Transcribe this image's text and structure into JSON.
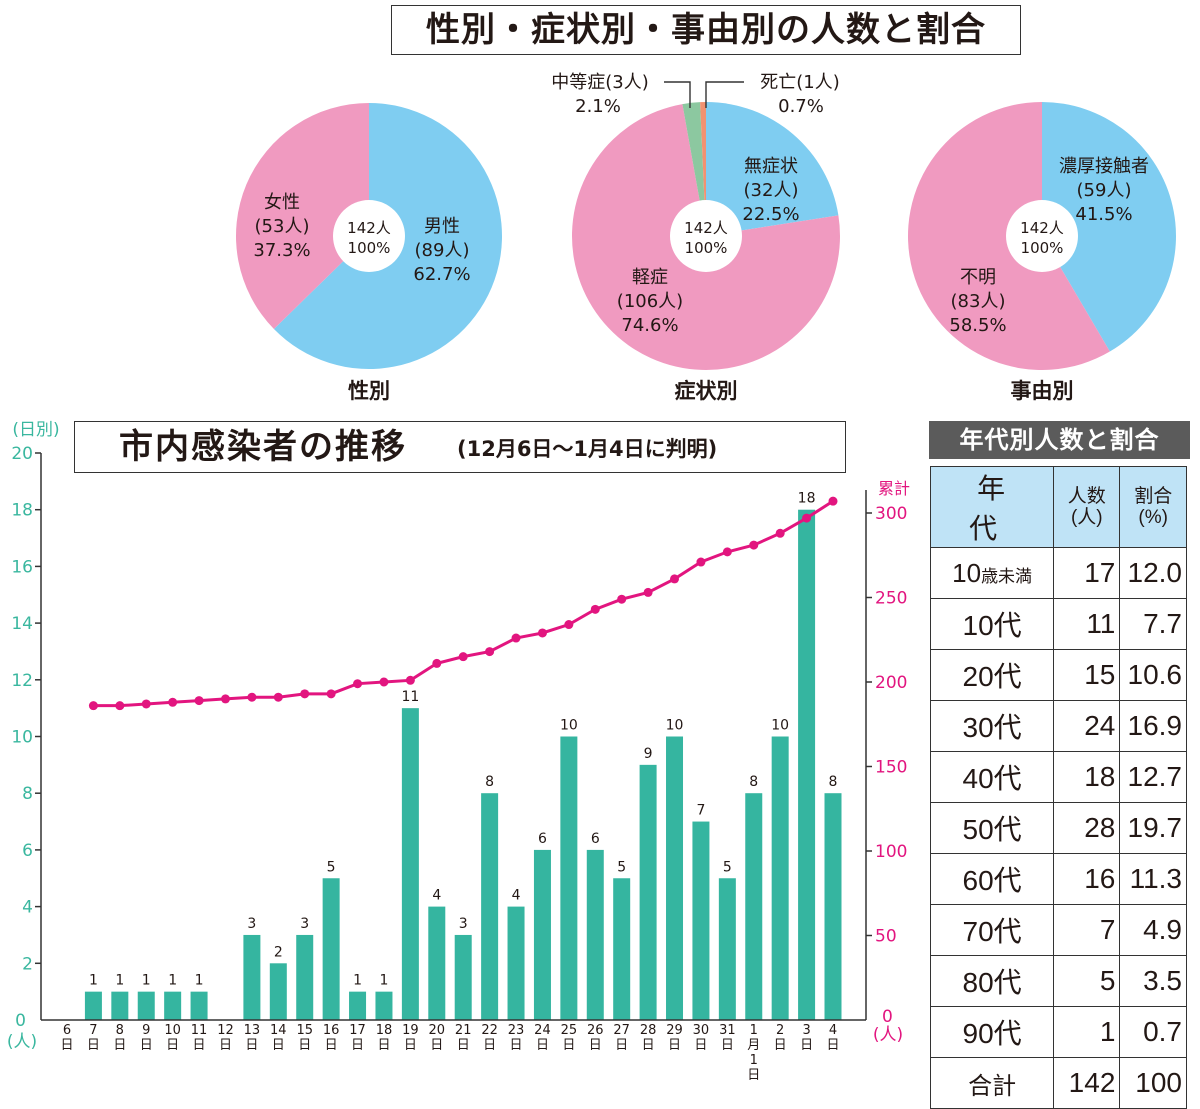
{
  "header": {
    "title": "性別・症状別・事由別の人数と割合"
  },
  "colors": {
    "blue": "#7fcdf1",
    "pink": "#f09ac0",
    "green": "#8cc8a0",
    "orange": "#f29271",
    "bar": "#35b5a0",
    "line": "#e2157f",
    "left_axis_text": "#3ab79f",
    "right_axis_text": "#e2157f",
    "table_header_bg": "#bfe3f6",
    "age_title_bg": "#5b5b5b"
  },
  "pies": [
    {
      "caption": "性別",
      "center": [
        "142人",
        "100%"
      ],
      "slices": [
        {
          "name": "男性",
          "count": "(89人)",
          "pct": "62.7%",
          "value": 89,
          "color": "#7fcdf1"
        },
        {
          "name": "女性",
          "count": "(53人)",
          "pct": "37.3%",
          "value": 53,
          "color": "#f09ac0"
        }
      ]
    },
    {
      "caption": "症状別",
      "center": [
        "142人",
        "100%"
      ],
      "slices": [
        {
          "name": "無症状",
          "count": "(32人)",
          "pct": "22.5%",
          "value": 32,
          "color": "#7fcdf1"
        },
        {
          "name": "軽症",
          "count": "(106人)",
          "pct": "74.6%",
          "value": 106,
          "color": "#f09ac0"
        },
        {
          "name": "中等症",
          "count": "(3人)",
          "pct": "2.1%",
          "value": 3,
          "color": "#8cc8a0"
        },
        {
          "name": "死亡",
          "count": "(1人)",
          "pct": "0.7%",
          "value": 1,
          "color": "#f29271"
        }
      ],
      "callouts": {
        "moderate": [
          "中等症(3人)",
          "2.1%"
        ],
        "death": [
          "死亡(1人)",
          "0.7%"
        ]
      }
    },
    {
      "caption": "事由別",
      "center": [
        "142人",
        "100%"
      ],
      "slices": [
        {
          "name": "濃厚接触者",
          "count": "(59人)",
          "pct": "41.5%",
          "value": 59,
          "color": "#7fcdf1"
        },
        {
          "name": "不明",
          "count": "(83人)",
          "pct": "58.5%",
          "value": 83,
          "color": "#f09ac0"
        }
      ]
    }
  ],
  "chart_data": {
    "type": "bar",
    "title": "市内感染者の推移",
    "subtitle": "(12月6日～1月4日に判明)",
    "categories": [
      "6日",
      "7日",
      "8日",
      "9日",
      "10日",
      "11日",
      "12日",
      "13日",
      "14日",
      "15日",
      "16日",
      "17日",
      "18日",
      "19日",
      "20日",
      "21日",
      "22日",
      "23日",
      "24日",
      "25日",
      "26日",
      "27日",
      "28日",
      "29日",
      "30日",
      "31日",
      "1月1日",
      "2日",
      "3日",
      "4日"
    ],
    "category_top": [
      "6",
      "7",
      "8",
      "9",
      "10",
      "11",
      "12",
      "13",
      "14",
      "15",
      "16",
      "17",
      "18",
      "19",
      "20",
      "21",
      "22",
      "23",
      "24",
      "25",
      "26",
      "27",
      "28",
      "29",
      "30",
      "31",
      "1",
      "2",
      "3",
      "4"
    ],
    "category_bottom": [
      "日",
      "日",
      "日",
      "日",
      "日",
      "日",
      "日",
      "日",
      "日",
      "日",
      "日",
      "日",
      "日",
      "日",
      "日",
      "日",
      "日",
      "日",
      "日",
      "日",
      "日",
      "日",
      "日",
      "日",
      "日",
      "日",
      "月",
      "日",
      "日",
      "日"
    ],
    "category_extra": {
      "26": [
        "1",
        "日"
      ]
    },
    "series": [
      {
        "name": "日別",
        "type": "bar",
        "axis": "left",
        "values": [
          0,
          1,
          1,
          1,
          1,
          1,
          0,
          3,
          2,
          3,
          5,
          1,
          1,
          11,
          4,
          3,
          8,
          4,
          6,
          10,
          6,
          5,
          9,
          10,
          7,
          5,
          8,
          10,
          18,
          8
        ]
      },
      {
        "name": "累計",
        "type": "line",
        "axis": "right",
        "values": [
          null,
          186,
          186,
          187,
          188,
          189,
          190,
          191,
          191,
          193,
          193,
          199,
          200,
          201,
          211,
          215,
          218,
          226,
          229,
          234,
          243,
          249,
          253,
          261,
          271,
          277,
          281,
          288,
          297,
          307
        ]
      }
    ],
    "left_axis": {
      "label": "(日別)",
      "unit": "(人)",
      "ylim": [
        0,
        20
      ],
      "ticks": [
        0,
        2,
        4,
        6,
        8,
        10,
        12,
        14,
        16,
        18,
        20
      ]
    },
    "right_axis": {
      "label": "累計",
      "unit": "(人)",
      "ylim": [
        0,
        300
      ],
      "ticks": [
        0,
        50,
        100,
        150,
        200,
        250,
        300
      ]
    },
    "grid": false,
    "legend": "none"
  },
  "age_table": {
    "title": "年代別人数と割合",
    "headers": {
      "age": "年　代",
      "count": [
        "人数",
        "(人)"
      ],
      "pct": [
        "割合",
        "(%)"
      ]
    },
    "rows": [
      {
        "age": "10",
        "age_suffix": "歳未満",
        "count": "17",
        "pct": "12.0"
      },
      {
        "age": "10代",
        "count": "11",
        "pct": "7.7"
      },
      {
        "age": "20代",
        "count": "15",
        "pct": "10.6"
      },
      {
        "age": "30代",
        "count": "24",
        "pct": "16.9"
      },
      {
        "age": "40代",
        "count": "18",
        "pct": "12.7"
      },
      {
        "age": "50代",
        "count": "28",
        "pct": "19.7"
      },
      {
        "age": "60代",
        "count": "16",
        "pct": "11.3"
      },
      {
        "age": "70代",
        "count": "7",
        "pct": "4.9"
      },
      {
        "age": "80代",
        "count": "5",
        "pct": "3.5"
      },
      {
        "age": "90代",
        "count": "1",
        "pct": "0.7"
      }
    ],
    "total": {
      "age": "合計",
      "count": "142",
      "pct": "100"
    }
  }
}
